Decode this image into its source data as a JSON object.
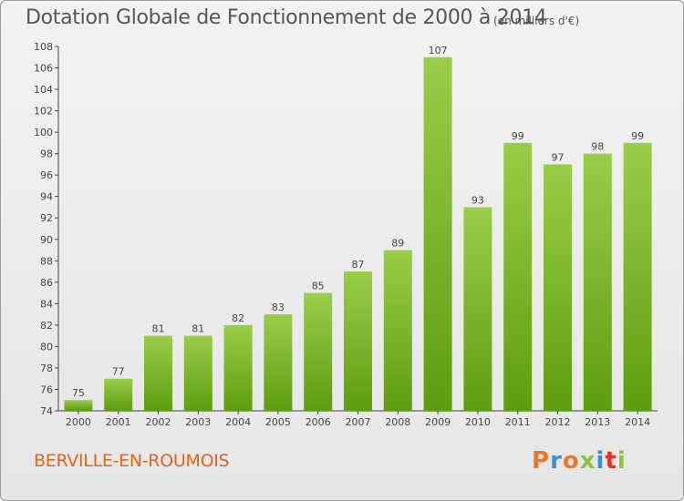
{
  "title": "Dotation Globale de Fonctionnement de 2000 à 2014",
  "unit": "(en milliers d'€)",
  "commune": "BERVILLE-EN-ROUMOIS",
  "logo": {
    "letters": [
      "P",
      "r",
      "o",
      "x",
      "i",
      "t",
      "i"
    ]
  },
  "colors": {
    "bar_top": "#9acd4a",
    "bar_bottom": "#5e9c10",
    "commune": "#e2641d"
  },
  "chart_data": {
    "type": "bar",
    "title": "Dotation Globale de Fonctionnement de 2000 à 2014",
    "categories": [
      "2000",
      "2001",
      "2002",
      "2003",
      "2004",
      "2005",
      "2006",
      "2007",
      "2008",
      "2009",
      "2010",
      "2011",
      "2012",
      "2013",
      "2014"
    ],
    "values": [
      75,
      77,
      81,
      81,
      82,
      83,
      85,
      87,
      89,
      107,
      93,
      99,
      97,
      98,
      99
    ],
    "ylim": [
      74,
      108
    ],
    "yticks": [
      74,
      76,
      78,
      80,
      82,
      84,
      86,
      88,
      90,
      92,
      94,
      96,
      98,
      100,
      102,
      104,
      106,
      108
    ],
    "grid": false,
    "xlabel": "",
    "ylabel": ""
  }
}
